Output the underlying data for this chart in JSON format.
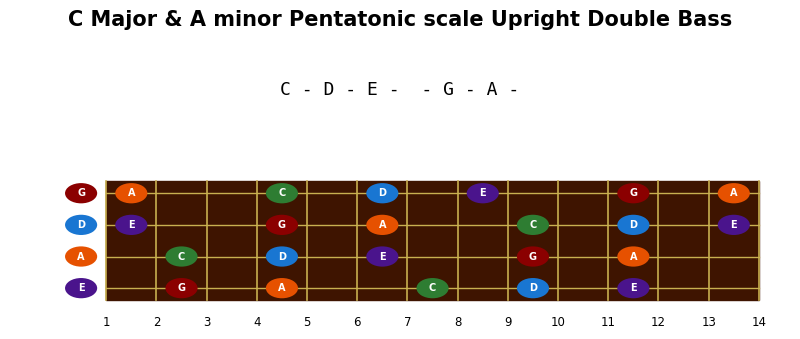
{
  "title": "C Major & A minor Pentatonic scale Upright Double Bass",
  "subtitle": "C - D - E -  - G - A -",
  "title_fontsize": 15,
  "subtitle_fontsize": 13,
  "fret_max": 14,
  "open_notes": [
    {
      "string": 3,
      "note": "G",
      "color": "#8B0000"
    },
    {
      "string": 2,
      "note": "D",
      "color": "#1976D2"
    },
    {
      "string": 1,
      "note": "A",
      "color": "#E65100"
    },
    {
      "string": 0,
      "note": "E",
      "color": "#4A148C"
    }
  ],
  "fretboard_bg": "#3E1400",
  "fret_line_color": "#C8B050",
  "string_line_color": "#C8B050",
  "notes": [
    {
      "fret": 2,
      "string": 3,
      "note": "A",
      "color": "#E65100"
    },
    {
      "fret": 5,
      "string": 3,
      "note": "C",
      "color": "#2E7D32"
    },
    {
      "fret": 7,
      "string": 3,
      "note": "D",
      "color": "#1976D2"
    },
    {
      "fret": 9,
      "string": 3,
      "note": "E",
      "color": "#4A148C"
    },
    {
      "fret": 12,
      "string": 3,
      "note": "G",
      "color": "#8B0000"
    },
    {
      "fret": 14,
      "string": 3,
      "note": "A",
      "color": "#E65100"
    },
    {
      "fret": 2,
      "string": 2,
      "note": "E",
      "color": "#4A148C"
    },
    {
      "fret": 5,
      "string": 2,
      "note": "G",
      "color": "#8B0000"
    },
    {
      "fret": 7,
      "string": 2,
      "note": "A",
      "color": "#E65100"
    },
    {
      "fret": 10,
      "string": 2,
      "note": "C",
      "color": "#2E7D32"
    },
    {
      "fret": 12,
      "string": 2,
      "note": "D",
      "color": "#1976D2"
    },
    {
      "fret": 14,
      "string": 2,
      "note": "E",
      "color": "#4A148C"
    },
    {
      "fret": 3,
      "string": 1,
      "note": "C",
      "color": "#2E7D32"
    },
    {
      "fret": 5,
      "string": 1,
      "note": "D",
      "color": "#1976D2"
    },
    {
      "fret": 7,
      "string": 1,
      "note": "E",
      "color": "#4A148C"
    },
    {
      "fret": 10,
      "string": 1,
      "note": "G",
      "color": "#8B0000"
    },
    {
      "fret": 12,
      "string": 1,
      "note": "A",
      "color": "#E65100"
    },
    {
      "fret": 3,
      "string": 0,
      "note": "G",
      "color": "#8B0000"
    },
    {
      "fret": 5,
      "string": 0,
      "note": "A",
      "color": "#E65100"
    },
    {
      "fret": 8,
      "string": 0,
      "note": "C",
      "color": "#2E7D32"
    },
    {
      "fret": 10,
      "string": 0,
      "note": "D",
      "color": "#1976D2"
    },
    {
      "fret": 12,
      "string": 0,
      "note": "E",
      "color": "#4A148C"
    }
  ],
  "background_color": "#FFFFFF"
}
